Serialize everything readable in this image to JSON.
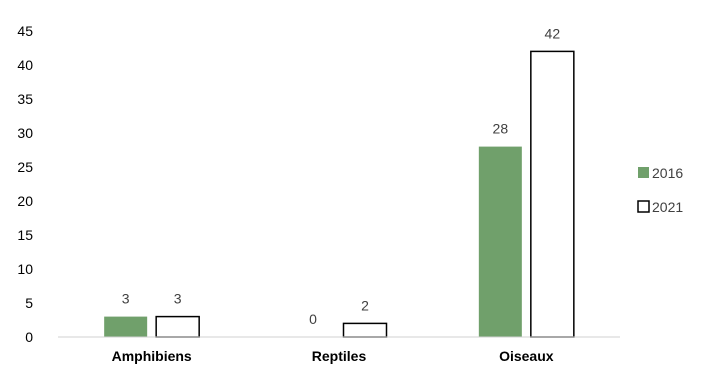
{
  "chart_data": {
    "type": "bar",
    "categories": [
      "Amphibiens",
      "Reptiles",
      "Oiseaux"
    ],
    "series": [
      {
        "name": "2016",
        "values": [
          3,
          0,
          28
        ],
        "fill": "#70a06b",
        "stroke": "#70a06b"
      },
      {
        "name": "2021",
        "values": [
          3,
          2,
          42
        ],
        "fill": "#ffffff",
        "stroke": "#000000"
      }
    ],
    "ylim": [
      0,
      45
    ],
    "yticks": [
      0,
      5,
      10,
      15,
      20,
      25,
      30,
      35,
      40,
      45
    ],
    "title": "",
    "xlabel": "",
    "ylabel": "",
    "grid": false,
    "legend": "right"
  }
}
